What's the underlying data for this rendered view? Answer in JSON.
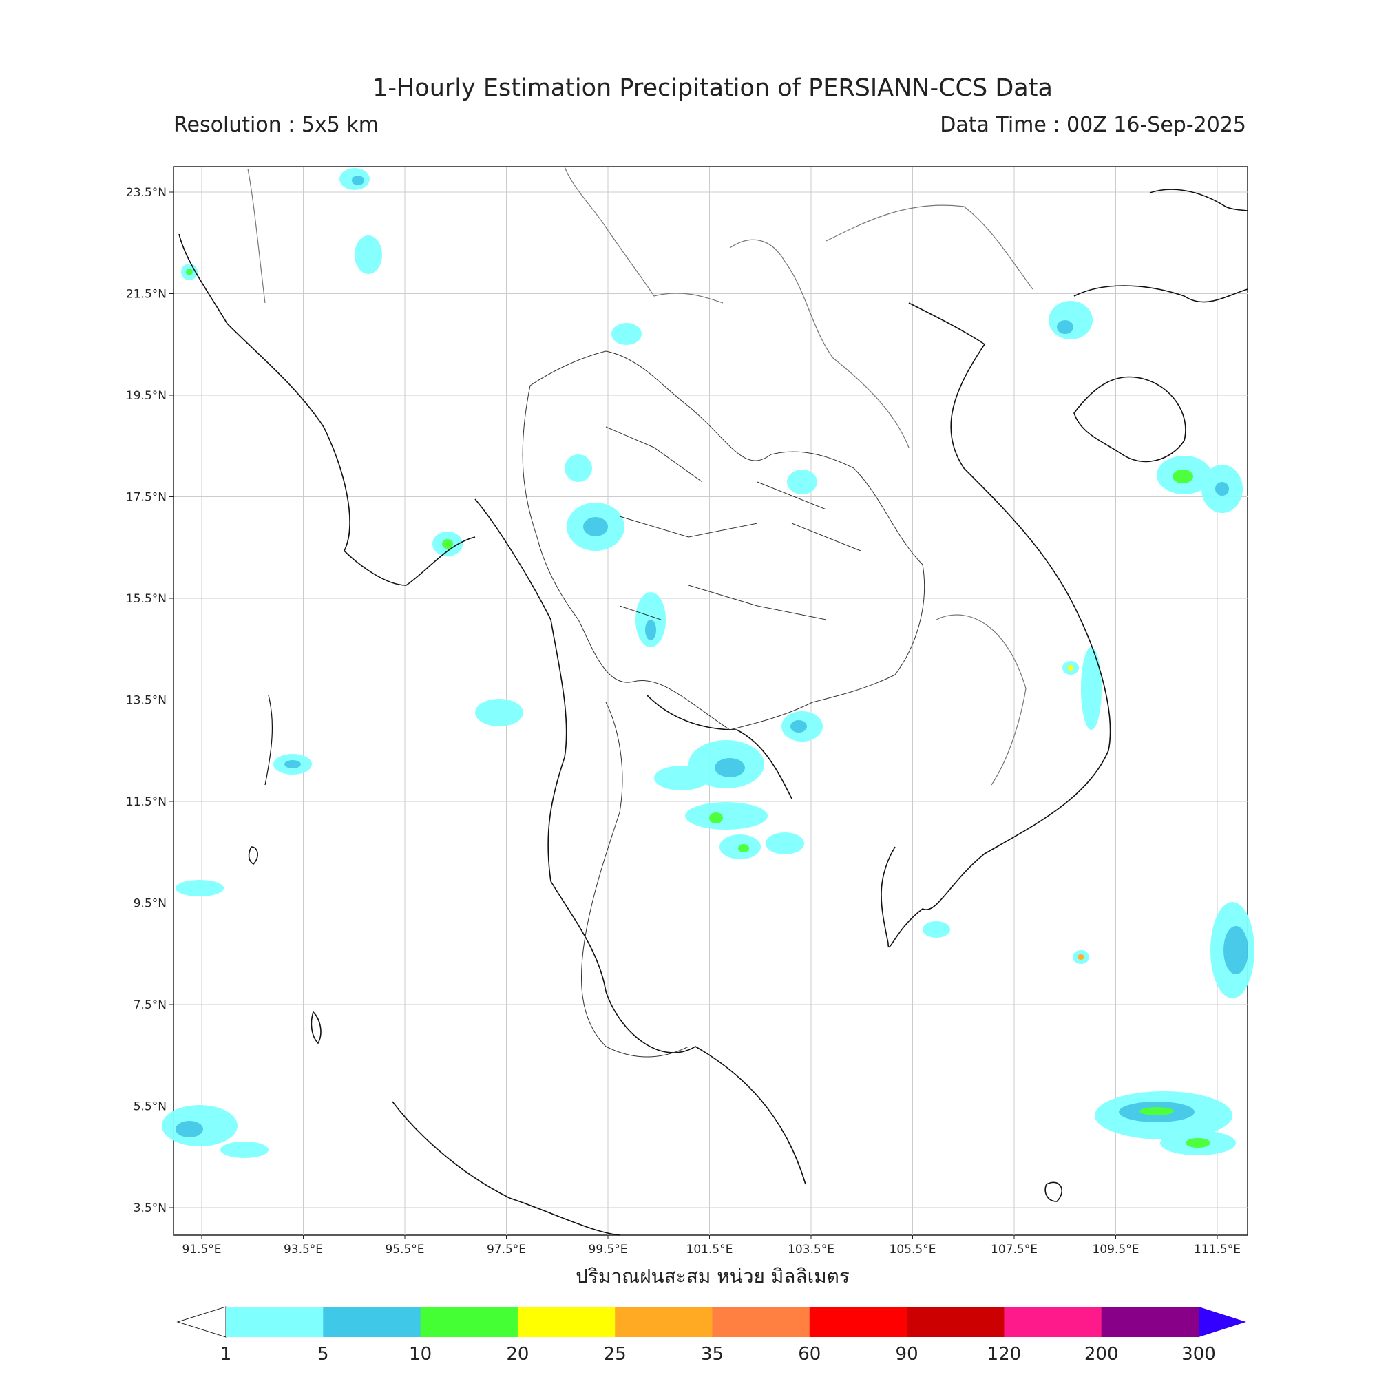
{
  "title": "1-Hourly Estimation Precipitation of PERSIANN-CCS Data",
  "resolution": "Resolution : 5x5 km",
  "data_time": "Data Time : 00Z 16-Sep-2025",
  "xlabel": "ปริมาณฝนสะสม หน่วย มิลลิเมตร",
  "lat_ticks": [
    "23.5°N",
    "21.5°N",
    "19.5°N",
    "17.5°N",
    "15.5°N",
    "13.5°N",
    "11.5°N",
    "9.5°N",
    "7.5°N",
    "5.5°N",
    "3.5°N"
  ],
  "lon_ticks": [
    "91.5°E",
    "93.5°E",
    "95.5°E",
    "97.5°E",
    "99.5°E",
    "101.5°E",
    "103.5°E",
    "105.5°E",
    "107.5°E",
    "109.5°E",
    "111.5°E"
  ],
  "colorbar": {
    "labels": [
      "1",
      "5",
      "10",
      "20",
      "25",
      "35",
      "60",
      "90",
      "120",
      "200",
      "300"
    ],
    "colors": [
      "#80ffff",
      "#40c8e8",
      "#44ff33",
      "#ffff00",
      "#ffaa22",
      "#ff8040",
      "#ff0000",
      "#cc0000",
      "#ff1a8c",
      "#880088",
      "#3300ff"
    ]
  }
}
